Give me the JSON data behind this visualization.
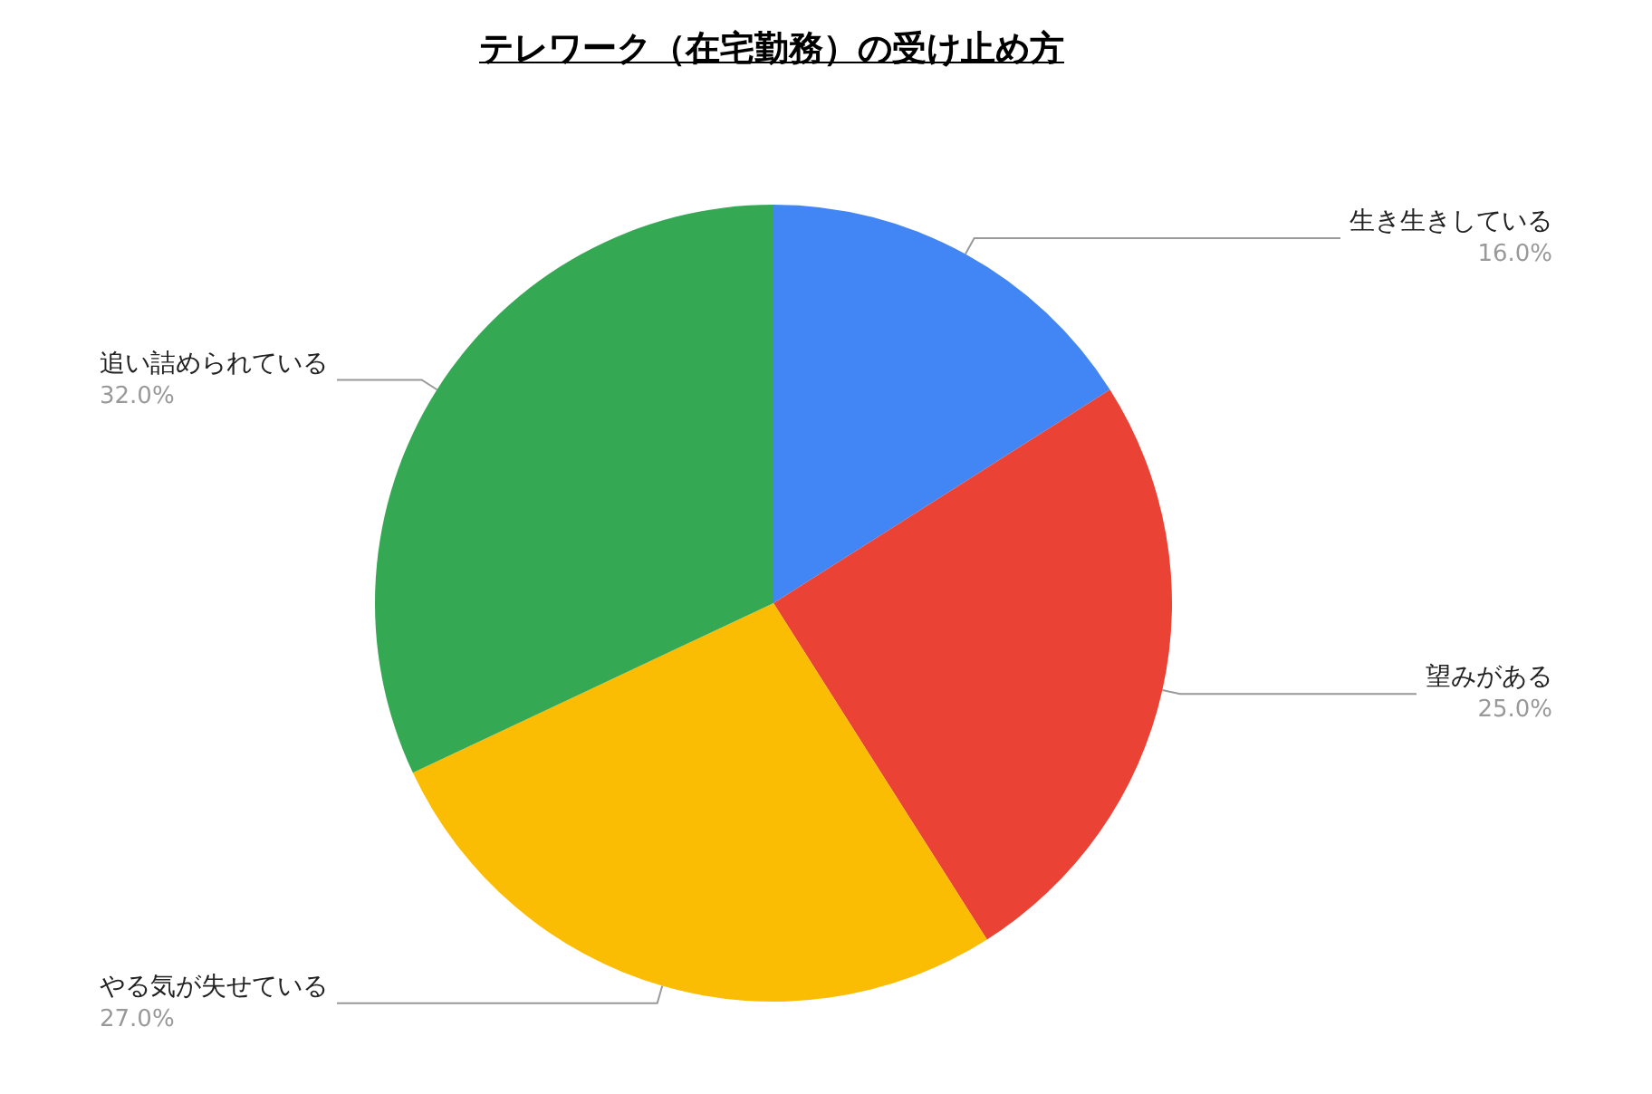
{
  "chart_data": {
    "type": "pie",
    "title": "テレワーク（在宅勤務）の受け止め方",
    "categories": [
      "生き生きしている",
      "望みがある",
      "やる気が失せている",
      "追い詰められている"
    ],
    "values": [
      16,
      25,
      27,
      32
    ],
    "value_labels": [
      "16.0%",
      "25.0%",
      "27.0%",
      "32.0%"
    ],
    "colors": [
      "#4285f4",
      "#ea4335",
      "#fbbc04",
      "#34a853"
    ],
    "legend": false
  }
}
